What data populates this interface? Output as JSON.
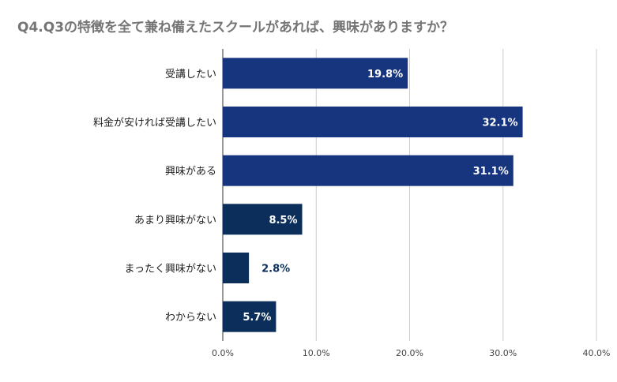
{
  "chart_data": {
    "type": "bar",
    "orientation": "horizontal",
    "title": "Q4.Q3の特徴を全て兼ね備えたスクールがあれば、興味がありますか？",
    "xlabel": "",
    "ylabel": "",
    "xlim": [
      0,
      40
    ],
    "ticks": [
      0,
      10,
      20,
      30,
      40
    ],
    "tick_labels": [
      "0.0%",
      "10.0%",
      "20.0%",
      "30.0%",
      "40.0%"
    ],
    "grid": true,
    "categories": [
      "受講したい",
      "料金が安ければ受講したい",
      "興味がある",
      "あまり興味がない",
      "まったく興味がない",
      "わからない"
    ],
    "values": [
      19.8,
      32.1,
      31.1,
      8.5,
      2.8,
      5.7
    ],
    "value_labels": [
      "19.8%",
      "32.1%",
      "31.1%",
      "8.5%",
      "2.8%",
      "5.7%"
    ],
    "colors": [
      "#17357f",
      "#17357f",
      "#17357f",
      "#0b2f5a",
      "#0b2f5a",
      "#0b2f5a"
    ],
    "label_inside_color": "#ffffff",
    "label_outside_color": "#0b2f5a"
  }
}
